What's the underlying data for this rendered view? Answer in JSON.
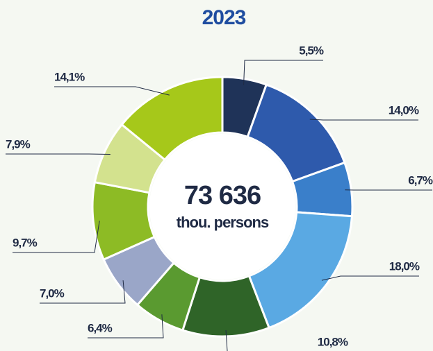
{
  "chart_data": {
    "type": "donut",
    "title": "2023",
    "center_label": "73 636",
    "center_unit": "thou. persons",
    "categories": [
      null,
      null,
      null,
      null,
      null,
      null,
      null,
      null,
      null,
      null
    ],
    "values": [
      5.5,
      14.0,
      6.7,
      18.0,
      10.8,
      6.4,
      7.0,
      9.7,
      7.9,
      14.1
    ],
    "value_labels": [
      "5,5%",
      "14,0%",
      "6,7%",
      "18,0%",
      "10,8%",
      "6,4%",
      "7,0%",
      "9,7%",
      "7,9%",
      "14,1%"
    ],
    "colors": [
      "#1f3358",
      "#2e5aac",
      "#3a7fca",
      "#5aa9e3",
      "#2f6428",
      "#5a9a30",
      "#9aa6c8",
      "#8dbb25",
      "#d3e28e",
      "#a6c81a"
    ]
  }
}
